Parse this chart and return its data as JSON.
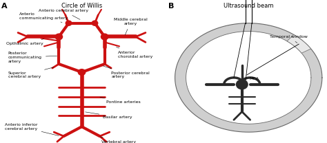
{
  "title_a": "Circle of Willis",
  "title_b": "Ultrasound beam",
  "label_a": "A",
  "label_b": "B",
  "bg_color": "#ffffff",
  "artery_color_a": "#cc1111",
  "artery_color_b": "#2a2a2a",
  "skull_color": "#aaaaaa",
  "text_color": "#000000",
  "fontsize_labels": 4.5,
  "fontsize_panel": 8,
  "fontsize_title": 6.0
}
